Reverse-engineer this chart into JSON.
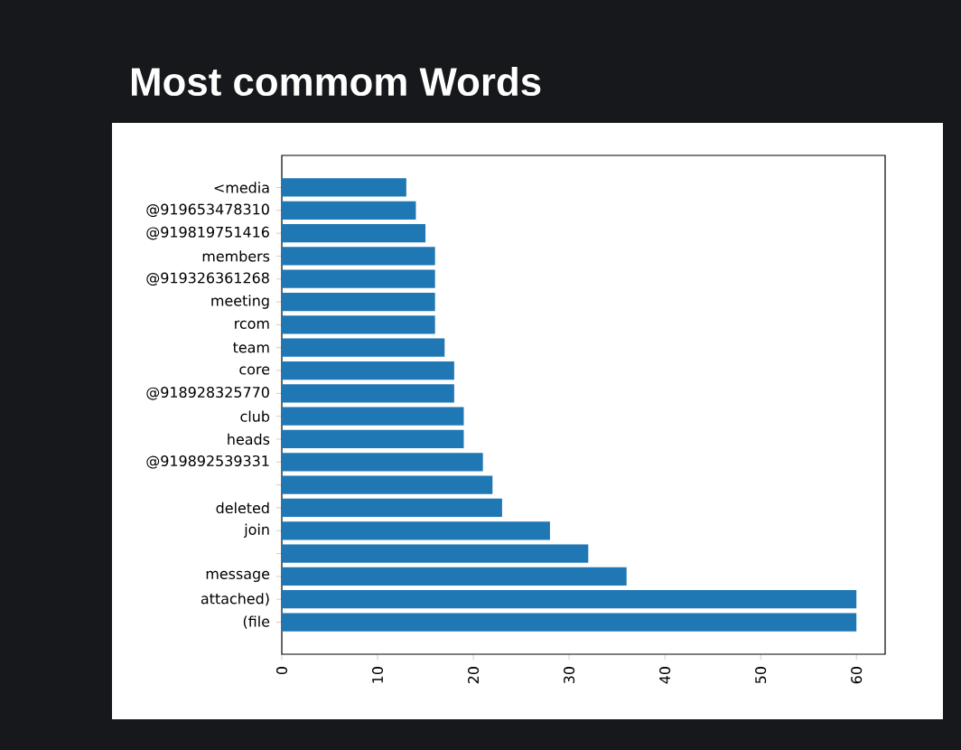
{
  "chart_data": {
    "type": "bar",
    "orientation": "horizontal",
    "title": "Most commom Words",
    "categories": [
      "<media",
      "@919653478310",
      "@919819751416",
      "members",
      "@919326361268",
      "meeting",
      "rcom",
      "team",
      "core",
      "@918928325770",
      "club",
      "heads",
      "@919892539331",
      null,
      "deleted",
      "join",
      null,
      "message",
      "attached)",
      "(file"
    ],
    "values": [
      13,
      14,
      15,
      16,
      16,
      16,
      16,
      17,
      18,
      18,
      19,
      19,
      21,
      22,
      23,
      28,
      32,
      36,
      60,
      60
    ],
    "color": "#1f77b4",
    "xlim": [
      0,
      63
    ],
    "xticks": [
      0,
      10,
      20,
      30,
      40,
      50,
      60
    ]
  }
}
